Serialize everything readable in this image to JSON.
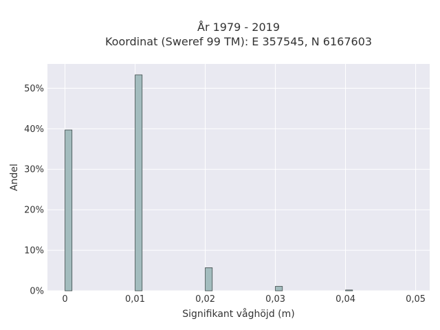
{
  "chart_data": {
    "type": "bar",
    "title": "År 1979 - 2019",
    "subtitle": "Koordinat (Sweref 99 TM): E 357545, N 6167603",
    "xlabel": "Signifikant våghöjd (m)",
    "ylabel": "Andel",
    "xlim": [
      -0.0025,
      0.052
    ],
    "ylim": [
      0,
      0.56
    ],
    "x_ticks": [
      0,
      0.01,
      0.02,
      0.03,
      0.04,
      0.05
    ],
    "x_tick_labels": [
      "0",
      "0,01",
      "0,02",
      "0,03",
      "0,04",
      "0,05"
    ],
    "y_ticks": [
      0,
      0.1,
      0.2,
      0.3,
      0.4,
      0.5
    ],
    "y_tick_labels": [
      "0%",
      "10%",
      "20%",
      "30%",
      "40%",
      "50%"
    ],
    "bin_width": 0.001,
    "bins": [
      {
        "x": 0.0,
        "value": 0.397
      },
      {
        "x": 0.01,
        "value": 0.533
      },
      {
        "x": 0.02,
        "value": 0.057
      },
      {
        "x": 0.03,
        "value": 0.011
      },
      {
        "x": 0.04,
        "value": 0.002
      }
    ],
    "grid": true,
    "legend": "none",
    "colors": {
      "background": "#e9e9f1",
      "bar_fill": "#a3bcbe",
      "bar_stroke": "#3e4a4a",
      "grid": "#ffffff"
    }
  }
}
